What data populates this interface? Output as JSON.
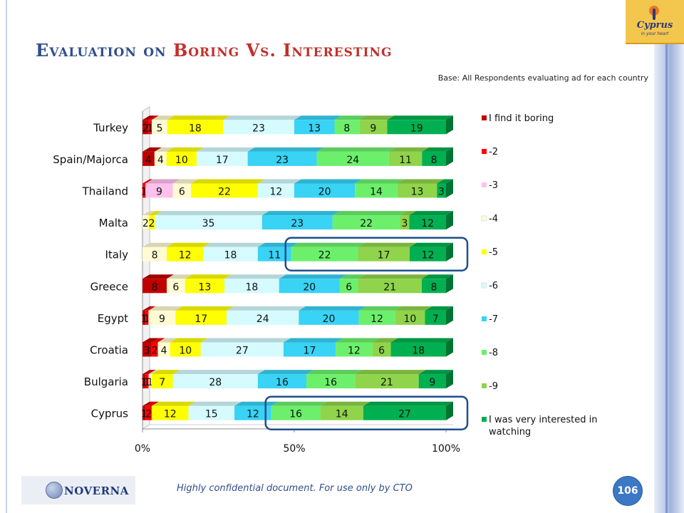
{
  "slide": {
    "title_part1": "Evaluation on ",
    "title_part2": "Boring Vs. Interesting",
    "base_note": "Base: All Respondents evaluating ad for each country",
    "footer": "Highly confidential document. For use only by CTO",
    "page_number": "106",
    "logo_cyprus_word": "Cyprus",
    "logo_cyprus_tagline": "in your heart",
    "logo_noverna": "NOVERNA"
  },
  "chart_data": {
    "type": "bar",
    "orientation": "horizontal",
    "stacked": "percent",
    "categories": [
      "Turkey",
      "Spain/Majorca",
      "Thailand",
      "Malta",
      "Italy",
      "Greece",
      "Egypt",
      "Croatia",
      "Bulgaria",
      "Cyprus"
    ],
    "series": [
      {
        "name": "I find it boring",
        "color": "#c00000",
        "values": [
          2,
          4,
          0,
          0,
          0,
          8,
          1,
          3,
          1,
          1
        ]
      },
      {
        "name": "-2",
        "color": "#ff0000",
        "values": [
          1,
          0,
          1,
          0,
          0,
          0,
          1,
          2,
          1,
          2
        ]
      },
      {
        "name": "-3",
        "color": "#ffc0ec",
        "values": [
          0,
          0,
          9,
          0,
          0,
          0,
          0,
          0,
          0,
          0
        ]
      },
      {
        "name": "-4",
        "color": "#fffbd2",
        "values": [
          5,
          4,
          6,
          2,
          8,
          6,
          9,
          4,
          1,
          0
        ]
      },
      {
        "name": "-5",
        "color": "#ffff00",
        "values": [
          18,
          10,
          22,
          2,
          12,
          13,
          17,
          10,
          7,
          12
        ]
      },
      {
        "name": "-6",
        "color": "#d5fbff",
        "values": [
          23,
          17,
          12,
          35,
          18,
          18,
          24,
          27,
          28,
          15
        ]
      },
      {
        "name": "-7",
        "color": "#38d3f5",
        "values": [
          13,
          23,
          20,
          23,
          11,
          20,
          20,
          17,
          16,
          12
        ]
      },
      {
        "name": "-8",
        "color": "#6cf06c",
        "values": [
          8,
          24,
          14,
          22,
          22,
          6,
          12,
          12,
          16,
          16
        ]
      },
      {
        "name": "-9",
        "color": "#8fd44a",
        "values": [
          9,
          11,
          13,
          3,
          17,
          21,
          10,
          6,
          21,
          14
        ]
      },
      {
        "name": "I was very interested in watching",
        "color": "#00b050",
        "values": [
          19,
          8,
          3,
          12,
          12,
          8,
          7,
          18,
          9,
          27
        ]
      }
    ],
    "x_ticks": [
      "0%",
      "50%",
      "100%"
    ],
    "xlim": [
      0,
      100
    ],
    "legend_position": "right",
    "highlighted_categories": [
      "Italy",
      "Cyprus"
    ],
    "highlight_color": "#1f4e8c"
  }
}
